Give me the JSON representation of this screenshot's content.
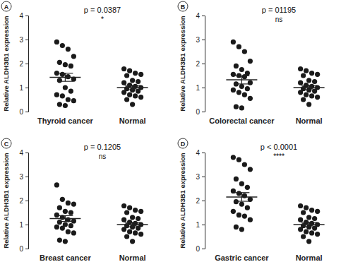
{
  "chart_data": [
    {
      "type": "scatter",
      "title": "A",
      "annotations": [
        "p = 0.0387",
        "*"
      ],
      "categories": [
        "Thyroid cancer",
        "Normal"
      ],
      "points": [
        [
          2.9,
          2.75,
          2.6,
          2.3,
          2.05,
          1.95,
          1.9,
          1.6,
          1.55,
          1.45,
          1.35,
          1.3,
          1.0,
          0.85,
          0.7,
          0.65,
          0.5,
          0.45,
          0.3,
          0.25
        ],
        [
          1.78,
          1.7,
          1.6,
          1.55,
          1.5,
          1.3,
          1.25,
          1.2,
          1.1,
          1.05,
          1.0,
          0.95,
          0.9,
          0.85,
          0.8,
          0.7,
          0.65,
          0.6,
          0.5,
          0.3
        ]
      ],
      "means": [
        1.43,
        1.0
      ],
      "errors": [
        0.17,
        0.09
      ],
      "ylabel": "Relative ALDH3B1 expression",
      "ylim": [
        0,
        4
      ],
      "yticks": [
        0,
        1,
        2,
        3,
        4
      ],
      "color": "#1a1a1a"
    },
    {
      "type": "scatter",
      "title": "B",
      "annotations": [
        "p = 01195",
        "ns"
      ],
      "categories": [
        "Colorectal cancer",
        "Normal"
      ],
      "points": [
        [
          2.9,
          2.7,
          2.5,
          2.1,
          1.9,
          1.75,
          1.6,
          1.55,
          1.5,
          1.45,
          1.2,
          1.15,
          1.05,
          0.95,
          0.9,
          0.8,
          0.7,
          0.55,
          0.2,
          0.15
        ],
        [
          1.78,
          1.7,
          1.6,
          1.55,
          1.5,
          1.3,
          1.25,
          1.2,
          1.1,
          1.05,
          1.0,
          0.95,
          0.9,
          0.85,
          0.8,
          0.7,
          0.65,
          0.6,
          0.5,
          0.3
        ]
      ],
      "means": [
        1.32,
        1.0
      ],
      "errors": [
        0.17,
        0.09
      ],
      "ylabel": "Relative ALDH3B1 expression",
      "ylim": [
        0,
        4
      ],
      "yticks": [
        0,
        1,
        2,
        3,
        4
      ],
      "color": "#1a1a1a"
    },
    {
      "type": "scatter",
      "title": "C",
      "annotations": [
        "p = 0.1205",
        "ns"
      ],
      "categories": [
        "Breast cancer",
        "Normal"
      ],
      "points": [
        [
          2.65,
          2.05,
          1.9,
          1.85,
          1.7,
          1.55,
          1.5,
          1.4,
          1.3,
          1.2,
          1.15,
          1.1,
          1.0,
          0.95,
          0.9,
          0.85,
          0.7,
          0.65,
          0.35,
          0.3
        ],
        [
          1.78,
          1.7,
          1.6,
          1.55,
          1.5,
          1.3,
          1.25,
          1.2,
          1.1,
          1.05,
          1.0,
          0.95,
          0.9,
          0.85,
          0.8,
          0.7,
          0.65,
          0.6,
          0.5,
          0.3
        ]
      ],
      "means": [
        1.25,
        1.0
      ],
      "errors": [
        0.12,
        0.09
      ],
      "ylabel": "Relative ALDH3B1 expression",
      "ylim": [
        0,
        4
      ],
      "yticks": [
        0,
        1,
        2,
        3,
        4
      ],
      "color": "#1a1a1a"
    },
    {
      "type": "scatter",
      "title": "D",
      "annotations": [
        "p < 0.0001",
        "****"
      ],
      "categories": [
        "Gastric cancer",
        "Normal"
      ],
      "points": [
        [
          3.8,
          3.7,
          3.5,
          3.3,
          2.9,
          2.7,
          2.55,
          2.4,
          2.3,
          2.2,
          2.05,
          1.95,
          1.85,
          1.7,
          1.55,
          1.4,
          1.35,
          1.2,
          0.9,
          0.8
        ],
        [
          1.78,
          1.7,
          1.6,
          1.55,
          1.5,
          1.3,
          1.25,
          1.2,
          1.1,
          1.05,
          1.0,
          0.95,
          0.9,
          0.85,
          0.8,
          0.7,
          0.65,
          0.6,
          0.5,
          0.3
        ]
      ],
      "means": [
        2.15,
        1.0
      ],
      "errors": [
        0.18,
        0.09
      ],
      "ylabel": "Relative ALDH3B1 expression",
      "ylim": [
        0,
        4
      ],
      "yticks": [
        0,
        1,
        2,
        3,
        4
      ],
      "color": "#1a1a1a"
    }
  ]
}
